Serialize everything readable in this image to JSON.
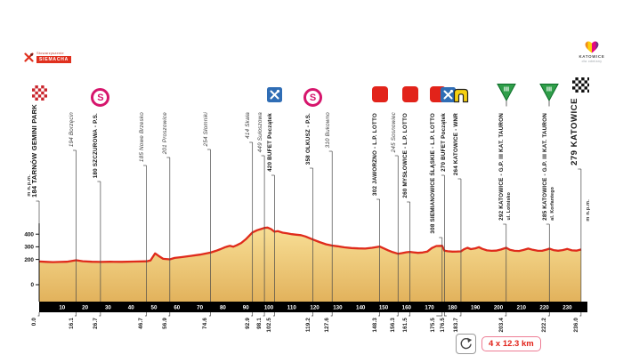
{
  "header": {
    "left_logo": {
      "org": "Stowarzyszenie",
      "name": "SIEMACHA"
    },
    "right_logo": {
      "city": "KATOWICE",
      "tagline": "dla odmiany"
    }
  },
  "axis": {
    "unit_label": "m n.p.m.",
    "y_ticks": [
      400,
      300,
      200,
      0
    ],
    "x_ticks": [
      10,
      20,
      30,
      40,
      50,
      60,
      70,
      80,
      90,
      100,
      110,
      120,
      130,
      140,
      150,
      160,
      170,
      180,
      190,
      200,
      210,
      220,
      230
    ]
  },
  "route": {
    "lap_note": "4 x 12.3 km",
    "events": [
      {
        "km": 0.0,
        "distance_label": "0.0",
        "elevation_m": 184,
        "label": "184 TARNÓW GEMINI PARK",
        "icon": "start-flag",
        "style": "bold",
        "size": "large-start"
      },
      {
        "km": 16.1,
        "distance_label": "16.1",
        "elevation_m": 194,
        "label": "194 Borzęcin",
        "icon": null,
        "style": "italic"
      },
      {
        "km": 26.7,
        "distance_label": "26.7",
        "elevation_m": 180,
        "label": "180 SZCZUROWA - P.S.",
        "icon": "sprint",
        "style": "bold"
      },
      {
        "km": 46.7,
        "distance_label": "46.7",
        "elevation_m": 185,
        "label": "185 Nowe Brzesko",
        "icon": null,
        "style": "italic"
      },
      {
        "km": 56.9,
        "distance_label": "56.9",
        "elevation_m": 201,
        "label": "201 Proszowice",
        "icon": null,
        "style": "italic"
      },
      {
        "km": 74.6,
        "distance_label": "74.6",
        "elevation_m": 254,
        "label": "254 Słomniki",
        "icon": null,
        "style": "italic"
      },
      {
        "km": 92.9,
        "distance_label": "92.9",
        "elevation_m": 414,
        "label": "414 Skała",
        "icon": null,
        "style": "italic"
      },
      {
        "km": 98.1,
        "distance_label": "98.1",
        "elevation_m": 449,
        "label": "449 Sułoszowa",
        "icon": null,
        "style": "italic"
      },
      {
        "km": 102.5,
        "distance_label": "102.5",
        "elevation_m": 420,
        "label": "420 BUFET Początek",
        "icon": "feed",
        "style": "bold"
      },
      {
        "km": 119.2,
        "distance_label": "119.2",
        "elevation_m": 358,
        "label": "358 OLKUSZ - P.S.",
        "icon": "sprint",
        "style": "bold"
      },
      {
        "km": 127.6,
        "distance_label": "127.6",
        "elevation_m": 310,
        "label": "310 Bukowno",
        "icon": null,
        "style": "italic"
      },
      {
        "km": 148.3,
        "distance_label": "148.3",
        "elevation_m": 302,
        "label": "302 JAWORZNO - L.P. LOTTO",
        "icon": "lotto",
        "style": "bold"
      },
      {
        "km": 156.3,
        "distance_label": "156.3",
        "elevation_m": 245,
        "label": "245 Sosnowiec",
        "icon": null,
        "style": "italic"
      },
      {
        "km": 161.5,
        "distance_label": "161.5",
        "elevation_m": 260,
        "label": "260 MYSŁOWICE - L.P. LOTTO",
        "icon": "lotto",
        "style": "bold"
      },
      {
        "km": 175.5,
        "distance_label": "175.5",
        "elevation_m": 308,
        "label": "308 SIEMIANOWICE ŚLĄSKIE - L.P. LOTTO",
        "icon": "lotto",
        "style": "bold"
      },
      {
        "km": 176.5,
        "distance_label": "176.5",
        "elevation_m": 270,
        "label": "270 BUFET Początek",
        "icon": "feed",
        "style": "bold"
      },
      {
        "km": 183.7,
        "distance_label": "183.7",
        "elevation_m": 264,
        "label": "264 KATOWICE - WNR",
        "icon": "gate",
        "style": "bold"
      },
      {
        "km": 203.4,
        "distance_label": "203.4",
        "elevation_m": 292,
        "label": "292 KATOWICE - G.P. III KAT. TAURON",
        "sublabel": "ul. Lotnisko",
        "icon": "kom",
        "style": "bold"
      },
      {
        "km": 222.2,
        "distance_label": "222.2",
        "elevation_m": 285,
        "label": "285 KATOWICE - G.P. III KAT. TAURON",
        "sublabel": "al. Korfantego",
        "icon": "kom",
        "style": "bold"
      },
      {
        "km": 236.0,
        "distance_label": "236.0",
        "elevation_m": 279,
        "label": "279 KATOWICE",
        "icon": "finish-flag",
        "style": "bold",
        "size": "large-finish"
      }
    ]
  },
  "colors": {
    "profile_line": "#df2b1c",
    "profile_fill_top": "#f8df96",
    "profile_fill_bottom": "#e2b25c",
    "sprint_pink": "#d6156c",
    "lotto_red": "#e2231a",
    "feed_blue": "#2f6db5",
    "gate_yellow": "#f6d011",
    "kom_green": "#2f9e49",
    "start_red": "#c9252c",
    "lap_text_red": "#e2231a"
  },
  "chart_data": {
    "type": "area",
    "title": "",
    "xlabel": "km",
    "ylabel": "m n.p.m.",
    "x_range": [
      0,
      236
    ],
    "y_ticks": [
      400,
      300,
      200,
      0
    ],
    "x_ticks": [
      10,
      20,
      30,
      40,
      50,
      60,
      70,
      80,
      90,
      100,
      110,
      120,
      130,
      140,
      150,
      160,
      170,
      180,
      190,
      200,
      210,
      220,
      230
    ],
    "legend": "none",
    "profile": [
      [
        0,
        184
      ],
      [
        3,
        181
      ],
      [
        6,
        179
      ],
      [
        9,
        180
      ],
      [
        12,
        182
      ],
      [
        16.1,
        194
      ],
      [
        19,
        186
      ],
      [
        23,
        182
      ],
      [
        26.7,
        180
      ],
      [
        31,
        182
      ],
      [
        36,
        181
      ],
      [
        41,
        183
      ],
      [
        46.7,
        185
      ],
      [
        48.5,
        192
      ],
      [
        50.5,
        248
      ],
      [
        52,
        228
      ],
      [
        54,
        205
      ],
      [
        56.9,
        201
      ],
      [
        59,
        212
      ],
      [
        62,
        218
      ],
      [
        66,
        228
      ],
      [
        70,
        238
      ],
      [
        74.6,
        254
      ],
      [
        77,
        268
      ],
      [
        79,
        282
      ],
      [
        81,
        297
      ],
      [
        83,
        308
      ],
      [
        84.5,
        301
      ],
      [
        86,
        312
      ],
      [
        88,
        330
      ],
      [
        90,
        360
      ],
      [
        92.9,
        414
      ],
      [
        95,
        432
      ],
      [
        96.5,
        440
      ],
      [
        98.1,
        449
      ],
      [
        99.5,
        452
      ],
      [
        101,
        440
      ],
      [
        102.5,
        420
      ],
      [
        104,
        424
      ],
      [
        106,
        412
      ],
      [
        108,
        406
      ],
      [
        110,
        400
      ],
      [
        112,
        396
      ],
      [
        114,
        392
      ],
      [
        116,
        382
      ],
      [
        119.2,
        358
      ],
      [
        122,
        338
      ],
      [
        125,
        320
      ],
      [
        127.6,
        310
      ],
      [
        130,
        304
      ],
      [
        133,
        296
      ],
      [
        136,
        290
      ],
      [
        139,
        287
      ],
      [
        142,
        286
      ],
      [
        145,
        292
      ],
      [
        148.3,
        302
      ],
      [
        150,
        288
      ],
      [
        152,
        272
      ],
      [
        154,
        258
      ],
      [
        156.3,
        245
      ],
      [
        158,
        250
      ],
      [
        160,
        257
      ],
      [
        161.5,
        260
      ],
      [
        163,
        256
      ],
      [
        165,
        252
      ],
      [
        167,
        255
      ],
      [
        169,
        262
      ],
      [
        171,
        290
      ],
      [
        173,
        306
      ],
      [
        175.5,
        308
      ],
      [
        176.5,
        270
      ],
      [
        178,
        265
      ],
      [
        180,
        262
      ],
      [
        182,
        263
      ],
      [
        183.7,
        264
      ],
      [
        185,
        280
      ],
      [
        186.5,
        292
      ],
      [
        188,
        282
      ],
      [
        190,
        288
      ],
      [
        191.5,
        297
      ],
      [
        193,
        284
      ],
      [
        195,
        272
      ],
      [
        197,
        268
      ],
      [
        199,
        270
      ],
      [
        201,
        278
      ],
      [
        203.4,
        292
      ],
      [
        205,
        276
      ],
      [
        207,
        268
      ],
      [
        209,
        267
      ],
      [
        211,
        275
      ],
      [
        213,
        286
      ],
      [
        215,
        276
      ],
      [
        217,
        269
      ],
      [
        219,
        268
      ],
      [
        221,
        278
      ],
      [
        222.2,
        285
      ],
      [
        224,
        274
      ],
      [
        226,
        269
      ],
      [
        228,
        274
      ],
      [
        230,
        283
      ],
      [
        232,
        272
      ],
      [
        234,
        270
      ],
      [
        236,
        279
      ]
    ]
  }
}
